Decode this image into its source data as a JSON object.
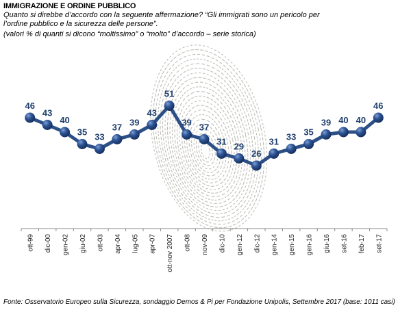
{
  "header": {
    "title": "IMMIGRAZIONE E ORDINE PUBBLICO",
    "question_line1": "Quanto si direbbe d’accordo con la seguente affermazione?  “Gli immigrati sono un pericolo per",
    "question_line2": "l’ordine pubblico e la sicurezza delle persone”.",
    "note": "(valori % di quanti si dicono “moltissimo” o “molto” d’accordo – serie storica)"
  },
  "footer": {
    "source": "Fonte: Osservatorio Europeo sulla Sicurezza, sondaggio Demos & Pi per Fondazione Unipolis, Settembre 2017 (base: 1011 casi)"
  },
  "colors": {
    "series": "#2c4f86",
    "label": "#1f3f6e",
    "fingerprint": "#a9a79f",
    "axis": "#888888"
  },
  "chart_data": {
    "type": "line",
    "title": "IMMIGRAZIONE E ORDINE PUBBLICO",
    "xlabel": "",
    "ylabel": "",
    "grid": false,
    "legend": "none",
    "categories": [
      "ott-99",
      "dic-00",
      "gen-02",
      "giu-02",
      "ott-03",
      "apr-04",
      "lug-05",
      "apr-07",
      "ott-nov 2007",
      "ott-08",
      "nov-09",
      "dic-10",
      "gen-12",
      "dic-12",
      "gen-14",
      "gen-15",
      "gen-16",
      "giu-16",
      "set-16",
      "feb-17",
      "set-17"
    ],
    "series": [
      {
        "name": "% moltissimo/molto d'accordo",
        "values": [
          46,
          43,
          40,
          35,
          33,
          37,
          39,
          43,
          51,
          39,
          37,
          31,
          29,
          26,
          31,
          33,
          35,
          39,
          40,
          40,
          46
        ]
      }
    ]
  }
}
